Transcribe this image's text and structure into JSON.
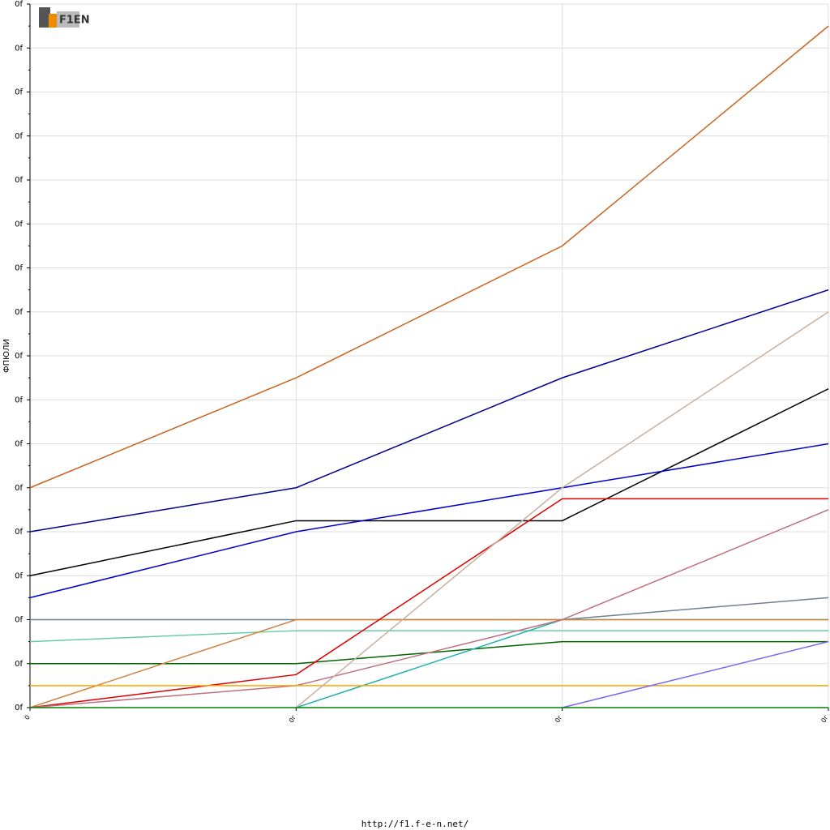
{
  "chart_data": {
    "type": "line",
    "logo": "F1EN",
    "y_label": "ФПЮЛИ",
    "footer": "http://f1.f-e-n.net/",
    "categories": [
      "0",
      "0г",
      "0г",
      "0г"
    ],
    "ylim": [
      0,
      16
    ],
    "yticks": [
      {
        "value": 0,
        "label": "0f"
      },
      {
        "value": 1,
        "label": "0f"
      },
      {
        "value": 2,
        "label": "0f"
      },
      {
        "value": 3,
        "label": "0f"
      },
      {
        "value": 4,
        "label": "0f"
      },
      {
        "value": 5,
        "label": "0f"
      },
      {
        "value": 6,
        "label": "0f"
      },
      {
        "value": 7,
        "label": "0f"
      },
      {
        "value": 8,
        "label": "0f"
      },
      {
        "value": 9,
        "label": "0f"
      },
      {
        "value": 10,
        "label": "0f"
      },
      {
        "value": 11,
        "label": "0f"
      },
      {
        "value": 12,
        "label": "0f"
      },
      {
        "value": 13,
        "label": "0f"
      },
      {
        "value": 14,
        "label": "0f"
      },
      {
        "value": 15,
        "label": "0f"
      },
      {
        "value": 16,
        "label": "0f"
      }
    ],
    "grid": true,
    "series": [
      {
        "color": "#c8641e",
        "values": [
          5,
          7.5,
          10.5,
          15.5
        ]
      },
      {
        "color": "#00008b",
        "values": [
          4,
          5,
          7.5,
          9.5
        ]
      },
      {
        "color": "#000000",
        "values": [
          3,
          4.25,
          4.25,
          7.25
        ]
      },
      {
        "color": "#0000cd",
        "values": [
          2.5,
          4,
          5,
          6
        ]
      },
      {
        "color": "#708090",
        "values": [
          2,
          2,
          2,
          2.5
        ]
      },
      {
        "color": "#66cdaa",
        "values": [
          1.5,
          1.75,
          1.75,
          1.75
        ]
      },
      {
        "color": "#006400",
        "values": [
          1,
          1,
          1.5,
          1.5
        ]
      },
      {
        "color": "#20b2aa",
        "values": [
          null,
          0,
          2,
          2
        ]
      },
      {
        "color": "#cd853f",
        "values": [
          0,
          2,
          2,
          2
        ]
      },
      {
        "color": "#dd0000",
        "values": [
          0,
          0.75,
          4.75,
          4.75
        ]
      },
      {
        "color": "#c07080",
        "values": [
          0,
          0.5,
          2,
          4.5
        ]
      },
      {
        "color": "#ffa500",
        "values": [
          0.5,
          0.5,
          0.5,
          0.5
        ]
      },
      {
        "color": "#c8b0a0",
        "values": [
          null,
          0,
          5,
          9
        ]
      },
      {
        "color": "#7b68ee",
        "values": [
          null,
          null,
          0,
          1.5
        ]
      },
      {
        "color": "#008000",
        "values": [
          0,
          0,
          0,
          0
        ]
      }
    ]
  }
}
